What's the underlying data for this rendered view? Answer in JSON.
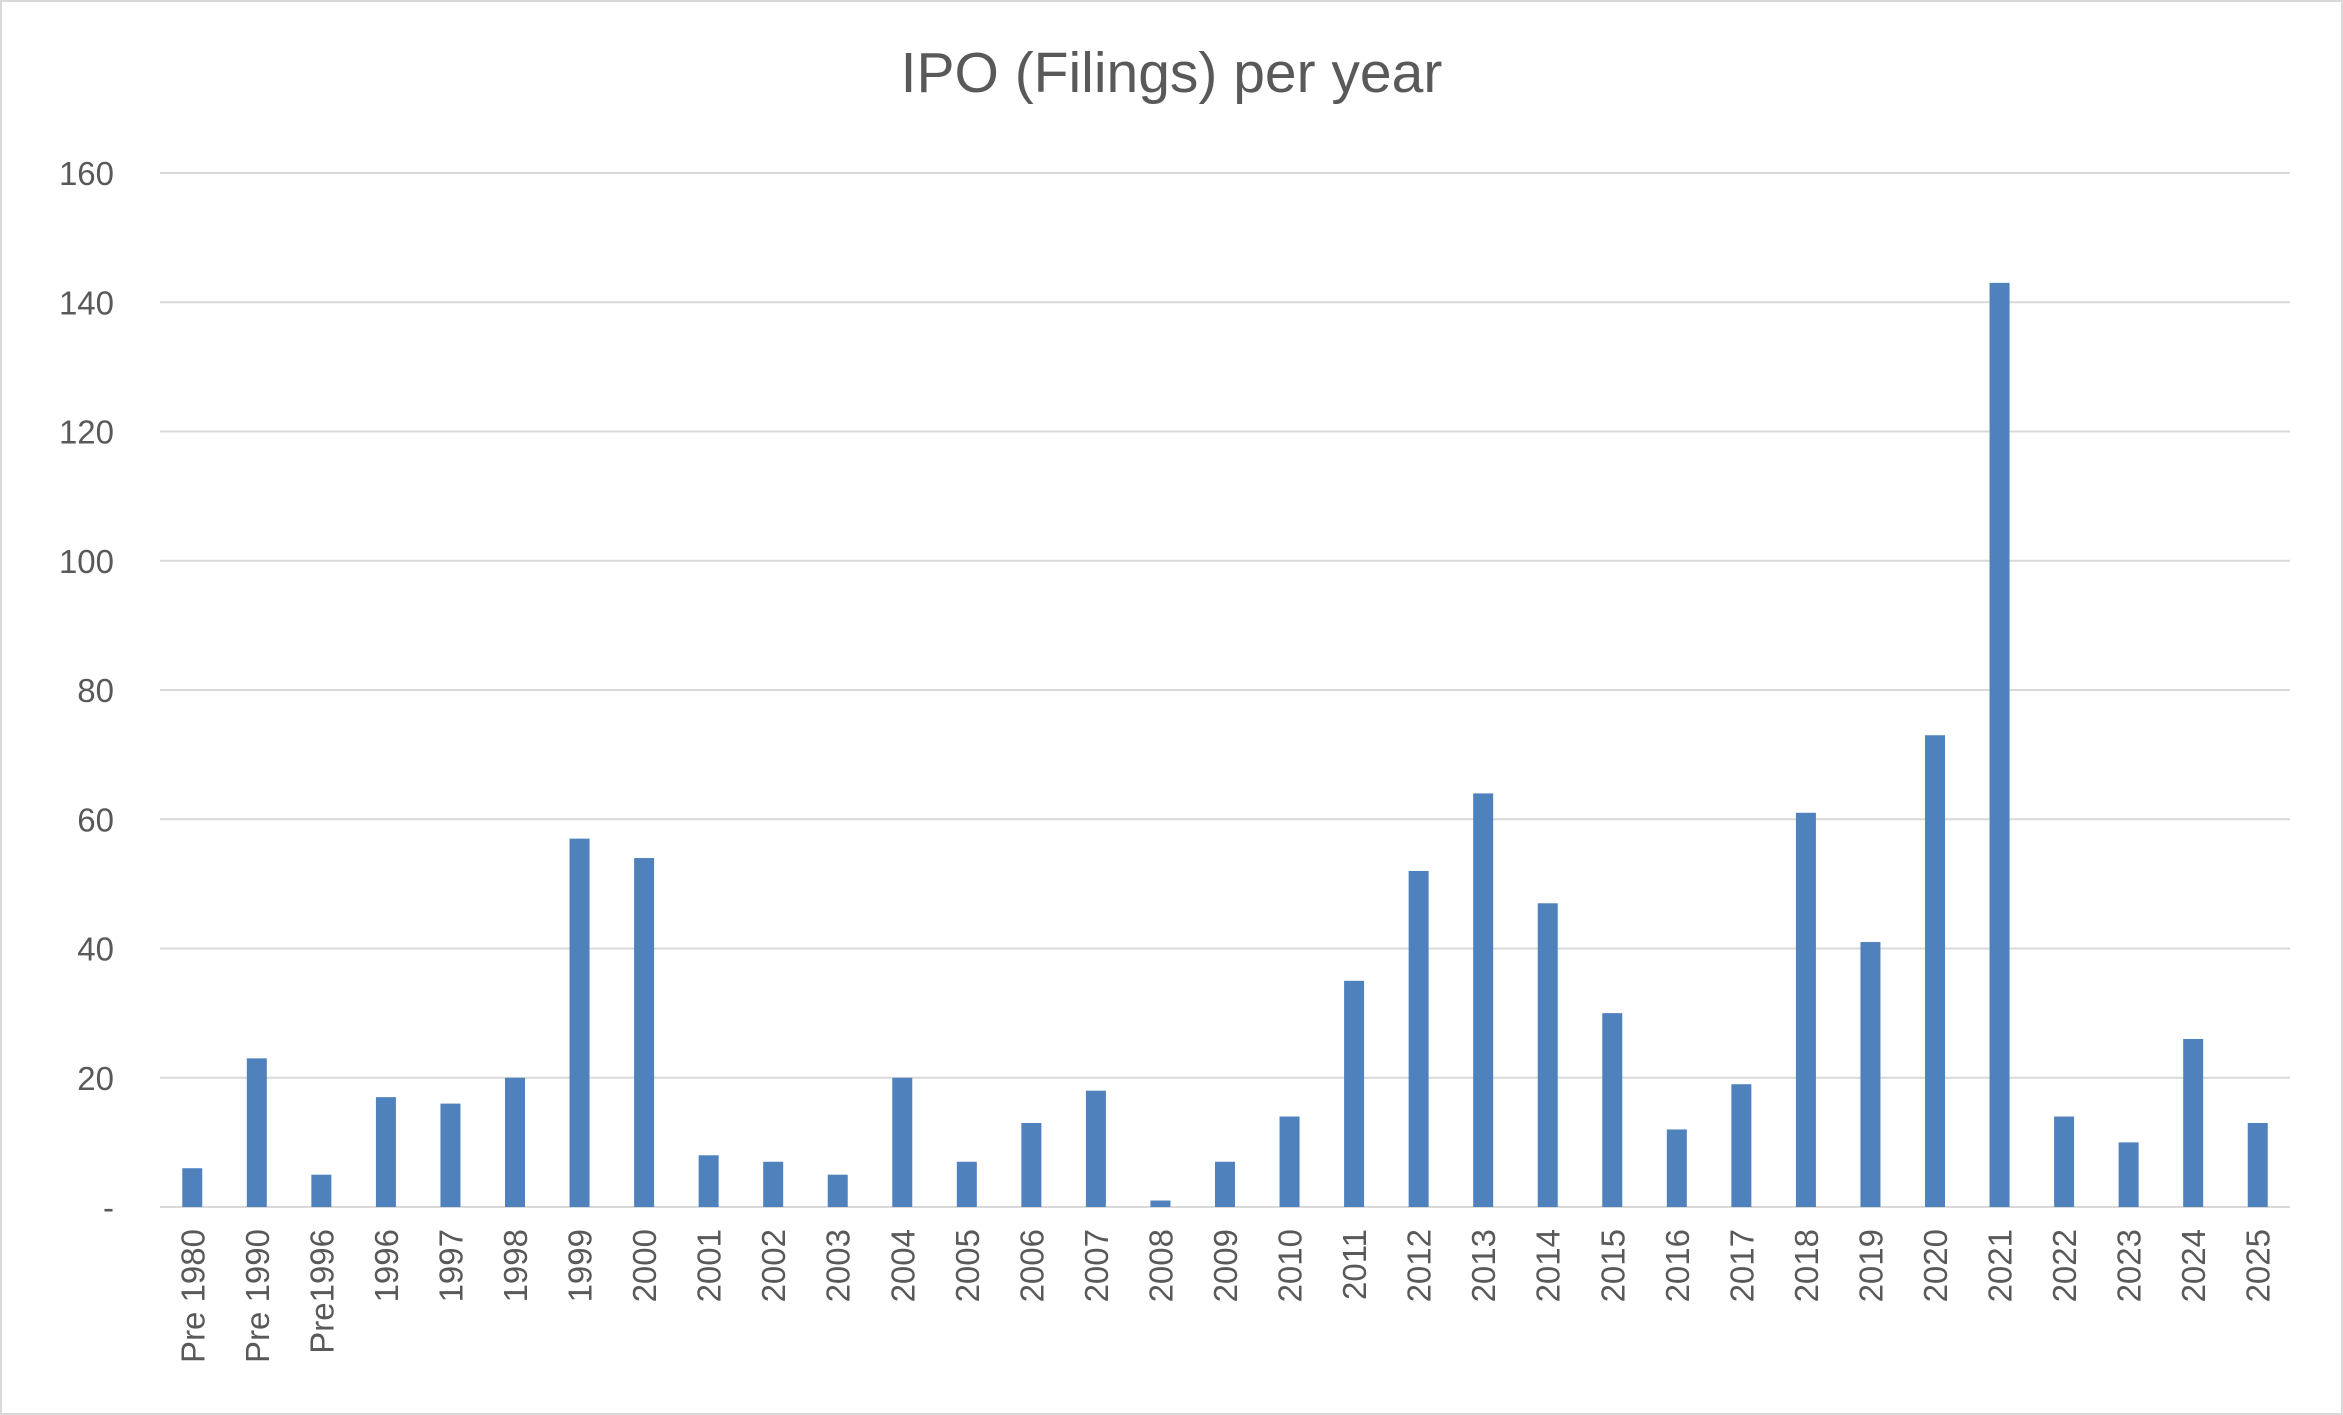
{
  "chart_data": {
    "type": "bar",
    "title": "IPO (Filings) per year",
    "xlabel": "",
    "ylabel": "",
    "categories": [
      "Pre 1980",
      "Pre 1990",
      "Pre1996",
      "1996",
      "1997",
      "1998",
      "1999",
      "2000",
      "2001",
      "2002",
      "2003",
      "2004",
      "2005",
      "2006",
      "2007",
      "2008",
      "2009",
      "2010",
      "2011",
      "2012",
      "2013",
      "2014",
      "2015",
      "2016",
      "2017",
      "2018",
      "2019",
      "2020",
      "2021",
      "2022",
      "2023",
      "2024",
      "2025"
    ],
    "values": [
      6,
      23,
      5,
      17,
      16,
      20,
      57,
      54,
      8,
      7,
      5,
      20,
      7,
      13,
      18,
      1,
      7,
      14,
      35,
      52,
      64,
      47,
      30,
      12,
      19,
      61,
      41,
      73,
      143,
      14,
      10,
      26,
      13
    ],
    "ylim": [
      0,
      160
    ],
    "y_ticks": [
      0,
      20,
      40,
      60,
      80,
      100,
      120,
      140,
      160
    ],
    "y_tick_labels": [
      "-",
      "20",
      "40",
      "60",
      "80",
      "100",
      "120",
      "140",
      "160"
    ],
    "grid": true,
    "legend": "none",
    "bar_color": "#4f81bd",
    "grid_color": "#d9d9d9",
    "text_color": "#595959"
  }
}
